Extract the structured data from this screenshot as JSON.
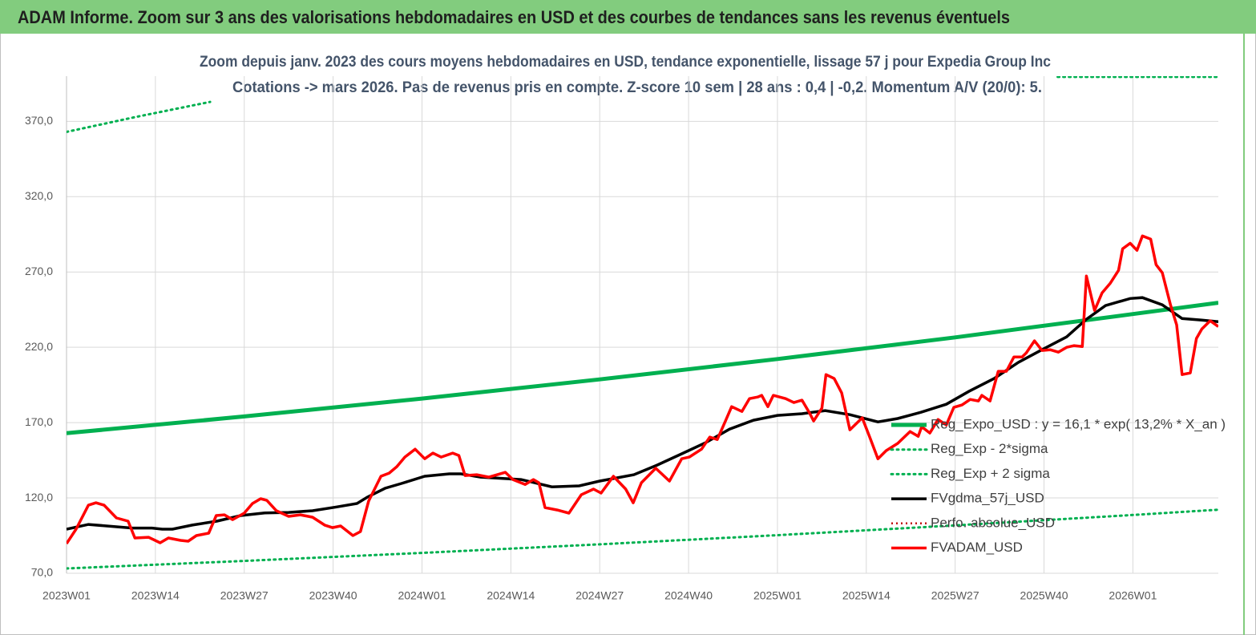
{
  "header": {
    "title": "ADAM Informe. Zoom sur 3 ans des valorisations hebdomadaires en USD et des courbes de tendances sans les revenus éventuels"
  },
  "chart_data": {
    "type": "line",
    "title": "Zoom depuis janv. 2023 des cours moyens hebdomadaires en USD, tendance exponentielle, lissage 57 j pour Expedia Group Inc",
    "subtitle": "Cotations -> mars 2026. Pas de revenus pris en  compte. Z-score 10 sem  | 28 ans : 0,4  | -0,2. Momentum A/V (20/0): 5.",
    "xlim": [
      0,
      168.5
    ],
    "xticks": [
      {
        "value": 0,
        "label": "2023W01"
      },
      {
        "value": 13,
        "label": "2023W14"
      },
      {
        "value": 26,
        "label": "2023W27"
      },
      {
        "value": 39,
        "label": "2023W40"
      },
      {
        "value": 52,
        "label": "2024W01"
      },
      {
        "value": 65,
        "label": "2024W14"
      },
      {
        "value": 78,
        "label": "2024W27"
      },
      {
        "value": 91,
        "label": "2024W40"
      },
      {
        "value": 104,
        "label": "2025W01"
      },
      {
        "value": 117,
        "label": "2025W14"
      },
      {
        "value": 130,
        "label": "2025W27"
      },
      {
        "value": 143,
        "label": "2025W40"
      },
      {
        "value": 156,
        "label": "2026W01"
      }
    ],
    "ylim": [
      70,
      400
    ],
    "yticks": [
      {
        "value": 70,
        "label": "70,0"
      },
      {
        "value": 120,
        "label": "120,0"
      },
      {
        "value": 170,
        "label": "170,0"
      },
      {
        "value": 220,
        "label": "220,0"
      },
      {
        "value": 270,
        "label": "270,0"
      },
      {
        "value": 320,
        "label": "320,0"
      },
      {
        "value": 370,
        "label": "370,0"
      }
    ],
    "grid": true,
    "legend": "right",
    "series": [
      {
        "name": "Reg_Expo_USD : y = 16,1 * exp( 13,2% * X_an )",
        "color": "#00b050",
        "style": "solid",
        "x": [
          0,
          26,
          52,
          78,
          104,
          130,
          156,
          168.5
        ],
        "values": [
          163,
          174.1,
          186,
          198.7,
          212.2,
          226.6,
          242.1,
          249.6
        ]
      },
      {
        "name": "Reg_Exp - 2*sigma",
        "color": "#00b050",
        "style": "dotted",
        "x": [
          0,
          26,
          52,
          78,
          104,
          130,
          156,
          168.5
        ],
        "values": [
          73.2,
          78.2,
          83.5,
          89.2,
          95.3,
          101.8,
          108.7,
          112.2
        ]
      },
      {
        "name": "Reg_Exp + 2 sigma",
        "color": "#00b050",
        "style": "dotted",
        "x": [
          0,
          10,
          21,
          21.5,
          145,
          168.5
        ],
        "values": [
          363,
          372.8,
          382.9,
          null,
          399.5,
          399.5
        ]
      },
      {
        "name": "FVgdma_57j_USD",
        "color": "#000000",
        "style": "solid",
        "x": [
          0,
          3.2,
          9.6,
          12.5,
          14,
          15.5,
          18.4,
          22,
          25.5,
          29,
          32.5,
          36,
          39.5,
          42.5,
          44,
          46.6,
          49,
          52.4,
          56,
          57.7,
          60.6,
          66.5,
          71,
          75,
          78,
          83,
          86.4,
          90,
          93.5,
          97,
          100.5,
          104,
          107.6,
          111,
          114.6,
          118.7,
          121.6,
          125,
          128.7,
          132,
          135.7,
          139.2,
          142.7,
          146.3,
          149.2,
          152,
          155.6,
          157.4,
          160.3,
          163.2,
          166.1,
          168.5
        ],
        "values": [
          99.3,
          102.4,
          100,
          100,
          99.3,
          99.3,
          102,
          104.6,
          108.3,
          110,
          110.4,
          111.5,
          114,
          116.3,
          120.5,
          126.4,
          129.6,
          134.4,
          136,
          136,
          133.8,
          132.2,
          127.4,
          128,
          131.2,
          135.4,
          141.8,
          149.3,
          156.7,
          165.7,
          171.6,
          174.8,
          175.9,
          178,
          175.3,
          170.5,
          172.7,
          176.9,
          182.2,
          190.7,
          199.3,
          209.9,
          218.4,
          226.9,
          238.6,
          247.7,
          252.4,
          253,
          248.2,
          239.1,
          238.1,
          237
        ]
      },
      {
        "name": "Perfo. absolue_USD",
        "color": "#c00000",
        "style": "dotted",
        "x": [],
        "values": []
      },
      {
        "name": "FVADAM_USD",
        "color": "#ff0000",
        "style": "solid",
        "x": [
          0,
          1.4,
          3.2,
          4.3,
          5.5,
          7.3,
          9,
          10,
          12,
          13.7,
          14.9,
          16.7,
          17.8,
          19,
          20.8,
          21.9,
          23.1,
          24.3,
          26,
          27.2,
          28.4,
          29.3,
          30.7,
          32.5,
          34.2,
          36,
          37.8,
          38.9,
          40.1,
          41.9,
          43,
          44.2,
          46,
          47.2,
          48.3,
          49.5,
          51,
          52.4,
          53.6,
          54.8,
          56.5,
          57.4,
          58.3,
          60,
          61.8,
          63,
          64.2,
          65.3,
          67.1,
          68.3,
          69.1,
          70,
          71.8,
          73.5,
          75.3,
          77.1,
          78.2,
          80,
          81.8,
          82.9,
          84.1,
          86.2,
          88.2,
          90,
          91.1,
          92.9,
          94.1,
          95.2,
          96.4,
          97.3,
          98.8,
          99.9,
          101.1,
          101.7,
          102.6,
          103.4,
          105.2,
          106.4,
          107.6,
          108.7,
          109.3,
          110.5,
          111.1,
          112.3,
          113.4,
          114.6,
          116.4,
          117.5,
          118.7,
          119.9,
          121.6,
          123.4,
          124.6,
          125.1,
          126.3,
          127.5,
          128.7,
          129.8,
          131,
          132.2,
          133.4,
          133.9,
          135.1,
          136.3,
          137.5,
          138.6,
          139.8,
          140.4,
          141.6,
          142.7,
          143.9,
          145.1,
          146.3,
          147.4,
          148.6,
          149.2,
          150.4,
          151.5,
          152.7,
          153.9,
          154.5,
          155.6,
          156.6,
          157.4,
          158.6,
          159.4,
          160.3,
          161.5,
          162.4,
          163.2,
          164.4,
          165.3,
          166.1,
          167.3,
          168.5
        ],
        "values": [
          89.7,
          99.3,
          115.2,
          116.8,
          115.2,
          106.7,
          104.6,
          93.4,
          93.9,
          90.2,
          93.4,
          91.8,
          91.3,
          95,
          96.6,
          108.3,
          108.8,
          105.6,
          109.9,
          116.3,
          119.5,
          118.4,
          111.5,
          107.8,
          108.8,
          107.2,
          101.9,
          100.3,
          101.4,
          95,
          97.7,
          117.9,
          134.4,
          136.5,
          140.7,
          147.1,
          152.4,
          146,
          149.8,
          147.1,
          149.8,
          148.2,
          134.9,
          135.4,
          133.8,
          135.4,
          137,
          132.2,
          129,
          132.2,
          130.1,
          113.6,
          112,
          109.9,
          122.1,
          125.9,
          123.2,
          134.4,
          125.9,
          116.8,
          130.1,
          139.7,
          131.2,
          146,
          147.1,
          152.4,
          160.4,
          158.8,
          171.1,
          180.6,
          177.4,
          185.9,
          187,
          188.1,
          180.6,
          188.1,
          185.9,
          183.3,
          184.9,
          176.4,
          171.1,
          179.6,
          201.9,
          199.3,
          189.7,
          165.2,
          173.2,
          160.4,
          146,
          151.4,
          156.2,
          164.1,
          160.9,
          167.3,
          163.1,
          172.1,
          168.4,
          180.1,
          181.7,
          185.4,
          184.4,
          188.1,
          184.4,
          204.1,
          204.1,
          213.6,
          213.6,
          216.3,
          224.3,
          217.9,
          218.4,
          216.8,
          220,
          221.1,
          220.5,
          267.3,
          244.5,
          256.2,
          262.6,
          271.1,
          285.4,
          289.1,
          284.4,
          293.9,
          291.8,
          274.8,
          269.5,
          248.2,
          234.9,
          201.9,
          203,
          225.9,
          232.2,
          237.6,
          233.8
        ]
      }
    ]
  }
}
